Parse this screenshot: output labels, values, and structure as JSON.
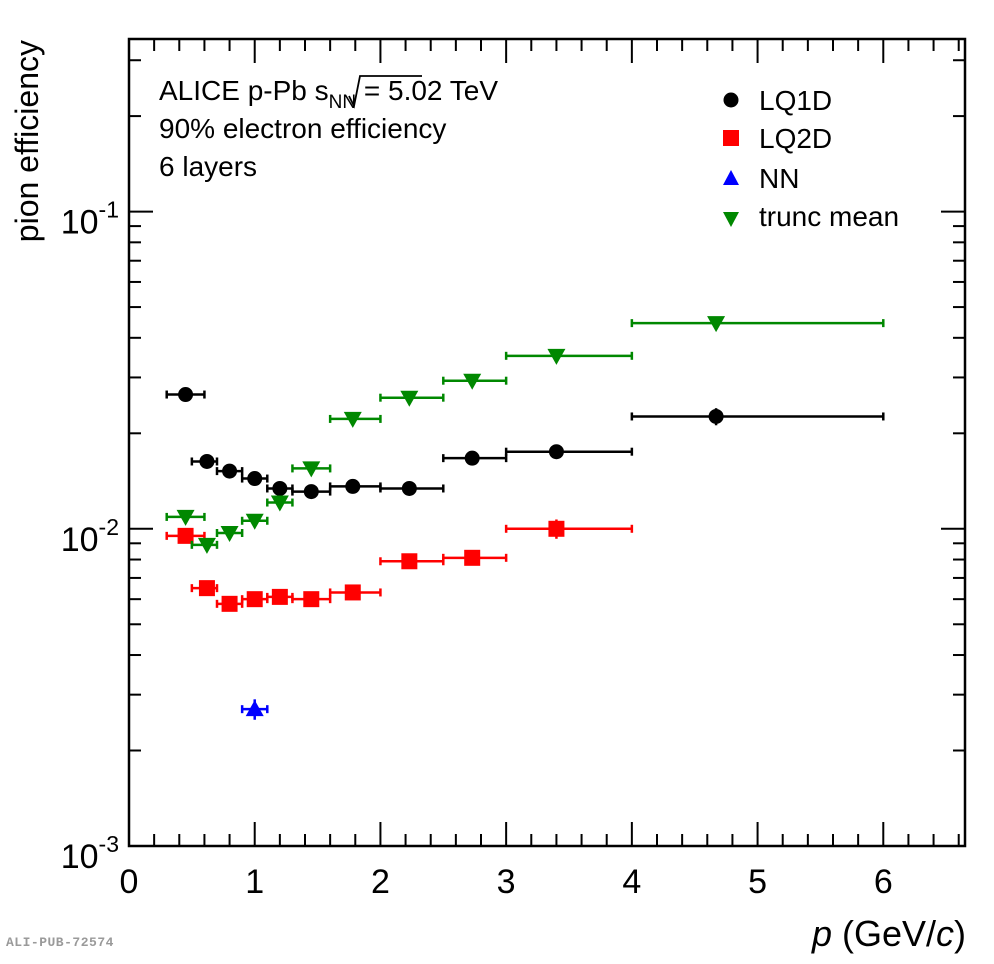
{
  "publication_id": "ALI-PUB-72574",
  "chart_data": {
    "type": "scatter",
    "xlabel_prefix": "p",
    "xlabel_mid": " (GeV/",
    "xlabel_c": "c",
    "xlabel_suffix": ")",
    "ylabel": "pion efficiency",
    "xlim": [
      0,
      6.65
    ],
    "ylim": [
      0.001,
      0.35
    ],
    "yscale": "log",
    "x_ticks": [
      0,
      1,
      2,
      3,
      4,
      5,
      6
    ],
    "x_tick_labels": [
      "0",
      "1",
      "2",
      "3",
      "4",
      "5",
      "6"
    ],
    "y_ticks": [
      0.001,
      0.01,
      0.1
    ],
    "y_tick_labels": [
      {
        "base": "10",
        "exp": "-3"
      },
      {
        "base": "10",
        "exp": "-2"
      },
      {
        "base": "10",
        "exp": "-1"
      }
    ],
    "annotations": {
      "line1_prefix": "ALICE p-Pb ",
      "line1_s": "s",
      "line1_sub": "NN",
      "line1_suffix": " = 5.02 TeV",
      "line2": "90% electron efficiency",
      "line3": "6 layers"
    },
    "legend_position": "top-right",
    "series": [
      {
        "name": "LQ1D",
        "marker": "circle",
        "color": "#000000",
        "points": [
          {
            "x": 0.45,
            "xlo": 0.3,
            "xhi": 0.6,
            "y": 0.0265,
            "elo": 0.0008,
            "ehi": 0.0008
          },
          {
            "x": 0.62,
            "xlo": 0.5,
            "xhi": 0.7,
            "y": 0.0163,
            "elo": 0.0005,
            "ehi": 0.0005
          },
          {
            "x": 0.8,
            "xlo": 0.7,
            "xhi": 0.9,
            "y": 0.0152,
            "elo": 0.0005,
            "ehi": 0.0005
          },
          {
            "x": 1.0,
            "xlo": 0.9,
            "xhi": 1.1,
            "y": 0.0144,
            "elo": 0.0005,
            "ehi": 0.0005
          },
          {
            "x": 1.2,
            "xlo": 1.1,
            "xhi": 1.3,
            "y": 0.0134,
            "elo": 0.0005,
            "ehi": 0.0005
          },
          {
            "x": 1.45,
            "xlo": 1.3,
            "xhi": 1.6,
            "y": 0.0131,
            "elo": 0.0004,
            "ehi": 0.0004
          },
          {
            "x": 1.78,
            "xlo": 1.6,
            "xhi": 2.0,
            "y": 0.0136,
            "elo": 0.0004,
            "ehi": 0.0004
          },
          {
            "x": 2.23,
            "xlo": 2.0,
            "xhi": 2.5,
            "y": 0.0134,
            "elo": 0.0004,
            "ehi": 0.0004
          },
          {
            "x": 2.73,
            "xlo": 2.5,
            "xhi": 3.0,
            "y": 0.0167,
            "elo": 0.0005,
            "ehi": 0.0005
          },
          {
            "x": 3.4,
            "xlo": 3.0,
            "xhi": 4.0,
            "y": 0.0175,
            "elo": 0.0005,
            "ehi": 0.0005
          },
          {
            "x": 4.67,
            "xlo": 4.0,
            "xhi": 6.0,
            "y": 0.0226,
            "elo": 0.0014,
            "ehi": 0.0014
          }
        ]
      },
      {
        "name": "LQ2D",
        "marker": "square",
        "color": "#ff0000",
        "points": [
          {
            "x": 0.45,
            "xlo": 0.3,
            "xhi": 0.6,
            "y": 0.0095,
            "elo": 0.0003,
            "ehi": 0.0003
          },
          {
            "x": 0.62,
            "xlo": 0.5,
            "xhi": 0.7,
            "y": 0.0065,
            "elo": 0.0002,
            "ehi": 0.0002
          },
          {
            "x": 0.8,
            "xlo": 0.7,
            "xhi": 0.9,
            "y": 0.0058,
            "elo": 0.0002,
            "ehi": 0.0002
          },
          {
            "x": 1.0,
            "xlo": 0.9,
            "xhi": 1.1,
            "y": 0.006,
            "elo": 0.0002,
            "ehi": 0.0002
          },
          {
            "x": 1.2,
            "xlo": 1.1,
            "xhi": 1.3,
            "y": 0.0061,
            "elo": 0.0002,
            "ehi": 0.0002
          },
          {
            "x": 1.45,
            "xlo": 1.3,
            "xhi": 1.6,
            "y": 0.006,
            "elo": 0.0002,
            "ehi": 0.0002
          },
          {
            "x": 1.78,
            "xlo": 1.6,
            "xhi": 2.0,
            "y": 0.0063,
            "elo": 0.0002,
            "ehi": 0.0002
          },
          {
            "x": 2.23,
            "xlo": 2.0,
            "xhi": 2.5,
            "y": 0.0079,
            "elo": 0.0003,
            "ehi": 0.0003
          },
          {
            "x": 2.73,
            "xlo": 2.5,
            "xhi": 3.0,
            "y": 0.0081,
            "elo": 0.0004,
            "ehi": 0.0004
          },
          {
            "x": 3.4,
            "xlo": 3.0,
            "xhi": 4.0,
            "y": 0.01,
            "elo": 0.0007,
            "ehi": 0.0007
          }
        ]
      },
      {
        "name": "NN",
        "marker": "triangle-up",
        "color": "#0000ff",
        "points": [
          {
            "x": 1.0,
            "xlo": 0.9,
            "xhi": 1.1,
            "y": 0.0027,
            "elo": 0.0002,
            "ehi": 0.0002
          }
        ]
      },
      {
        "name": "trunc mean",
        "marker": "triangle-down",
        "color": "#008800",
        "points": [
          {
            "x": 0.45,
            "xlo": 0.3,
            "xhi": 0.6,
            "y": 0.0109,
            "elo": 0.0003,
            "ehi": 0.0003
          },
          {
            "x": 0.62,
            "xlo": 0.5,
            "xhi": 0.7,
            "y": 0.0089,
            "elo": 0.0003,
            "ehi": 0.0003
          },
          {
            "x": 0.8,
            "xlo": 0.7,
            "xhi": 0.9,
            "y": 0.0097,
            "elo": 0.0003,
            "ehi": 0.0003
          },
          {
            "x": 1.0,
            "xlo": 0.9,
            "xhi": 1.1,
            "y": 0.0106,
            "elo": 0.0003,
            "ehi": 0.0003
          },
          {
            "x": 1.2,
            "xlo": 1.1,
            "xhi": 1.3,
            "y": 0.0121,
            "elo": 0.0004,
            "ehi": 0.0004
          },
          {
            "x": 1.45,
            "xlo": 1.3,
            "xhi": 1.6,
            "y": 0.0155,
            "elo": 0.0004,
            "ehi": 0.0004
          },
          {
            "x": 1.78,
            "xlo": 1.6,
            "xhi": 2.0,
            "y": 0.0222,
            "elo": 0.0005,
            "ehi": 0.0005
          },
          {
            "x": 2.23,
            "xlo": 2.0,
            "xhi": 2.5,
            "y": 0.0259,
            "elo": 0.0006,
            "ehi": 0.0006
          },
          {
            "x": 2.73,
            "xlo": 2.5,
            "xhi": 3.0,
            "y": 0.0293,
            "elo": 0.0007,
            "ehi": 0.0007
          },
          {
            "x": 3.4,
            "xlo": 3.0,
            "xhi": 4.0,
            "y": 0.0351,
            "elo": 0.0008,
            "ehi": 0.0008
          },
          {
            "x": 4.67,
            "xlo": 4.0,
            "xhi": 6.0,
            "y": 0.0445,
            "elo": 0.0012,
            "ehi": 0.0012
          }
        ]
      }
    ]
  }
}
